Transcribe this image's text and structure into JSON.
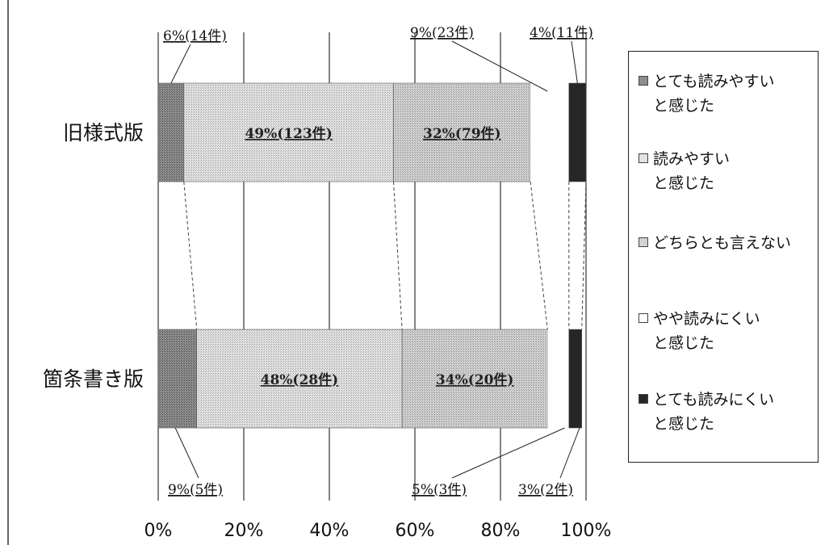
{
  "chart_data": {
    "type": "bar",
    "orientation": "horizontal",
    "stacked": true,
    "percent": true,
    "categories": [
      "旧様式版",
      "箇条書き版"
    ],
    "series": [
      {
        "name": "とても読みやすいと感じた",
        "values": [
          6,
          9
        ],
        "labels": [
          "6%(14件)",
          "9%(5件)"
        ],
        "color": "#8f8f8f"
      },
      {
        "name": "読みやすいと感じた",
        "values": [
          49,
          48
        ],
        "labels": [
          "49%(123件)",
          "48%(28件)"
        ],
        "color": "#d6d6d6"
      },
      {
        "name": "どちらとも言えない",
        "values": [
          32,
          34
        ],
        "labels": [
          "32%(79件)",
          "34%(20件)"
        ],
        "color": "#c8c8c8"
      },
      {
        "name": "やや読みにくいと感じた",
        "values": [
          9,
          5
        ],
        "labels": [
          "9%(23件)",
          "5%(3件)"
        ],
        "color": "#ffffff"
      },
      {
        "name": "とても読みにくいと感じた",
        "values": [
          4,
          3
        ],
        "labels": [
          "4%(11件)",
          "3%(2件)"
        ],
        "color": "#2a2a2a"
      }
    ],
    "x_ticks": [
      "0%",
      "20%",
      "40%",
      "60%",
      "80%",
      "100%"
    ],
    "xlim": [
      0,
      100
    ],
    "grid": true,
    "legend_position": "right"
  },
  "legend": [
    {
      "text": "とても読みやすい\nと感じた",
      "color": "#8f8f8f"
    },
    {
      "text": "読みやすい\nと感じた",
      "color": "#d6d6d6"
    },
    {
      "text": "どちらとも言えない",
      "color": "#c8c8c8"
    },
    {
      "text": "やや読みにくい\nと感じた",
      "color": "#ffffff"
    },
    {
      "text": "とても読みにくい\nと感じた",
      "color": "#2a2a2a"
    }
  ]
}
